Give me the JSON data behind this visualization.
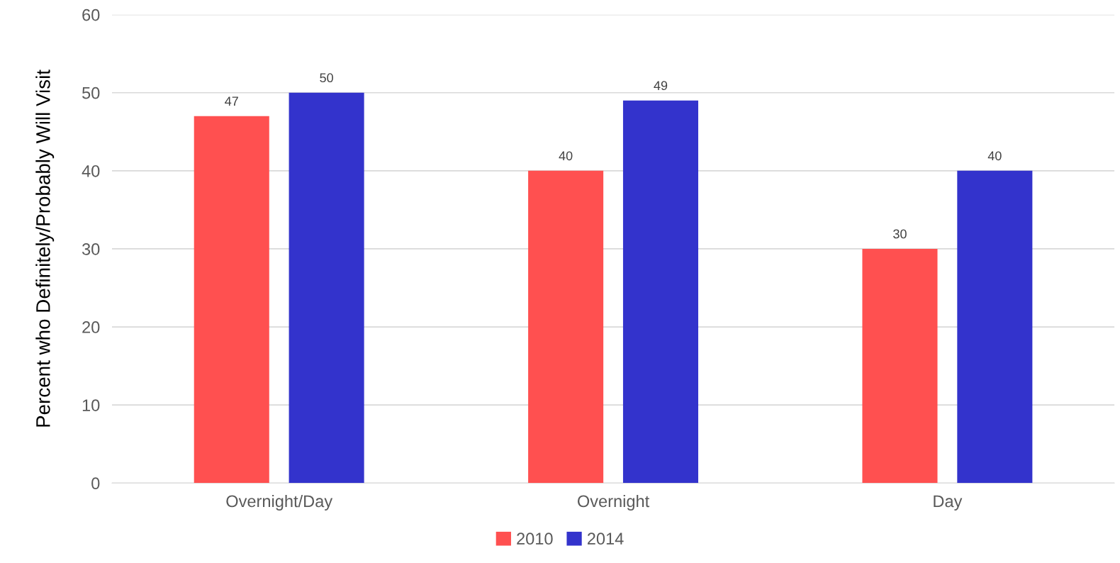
{
  "chart_data": {
    "type": "bar",
    "ylabel": "Percent who Definitely/Probably Will Visit",
    "categories": [
      "Overnight/Day",
      "Overnight",
      "Day"
    ],
    "series": [
      {
        "name": "2010",
        "color": "#ff5050",
        "values": [
          47,
          40,
          30
        ]
      },
      {
        "name": "2014",
        "color": "#3333cc",
        "values": [
          50,
          49,
          40
        ]
      }
    ],
    "ylim": [
      0,
      60
    ],
    "yticks": [
      0,
      10,
      20,
      30,
      40,
      50,
      60
    ],
    "grid": "y",
    "legend": "bottom",
    "data_labels": true
  }
}
